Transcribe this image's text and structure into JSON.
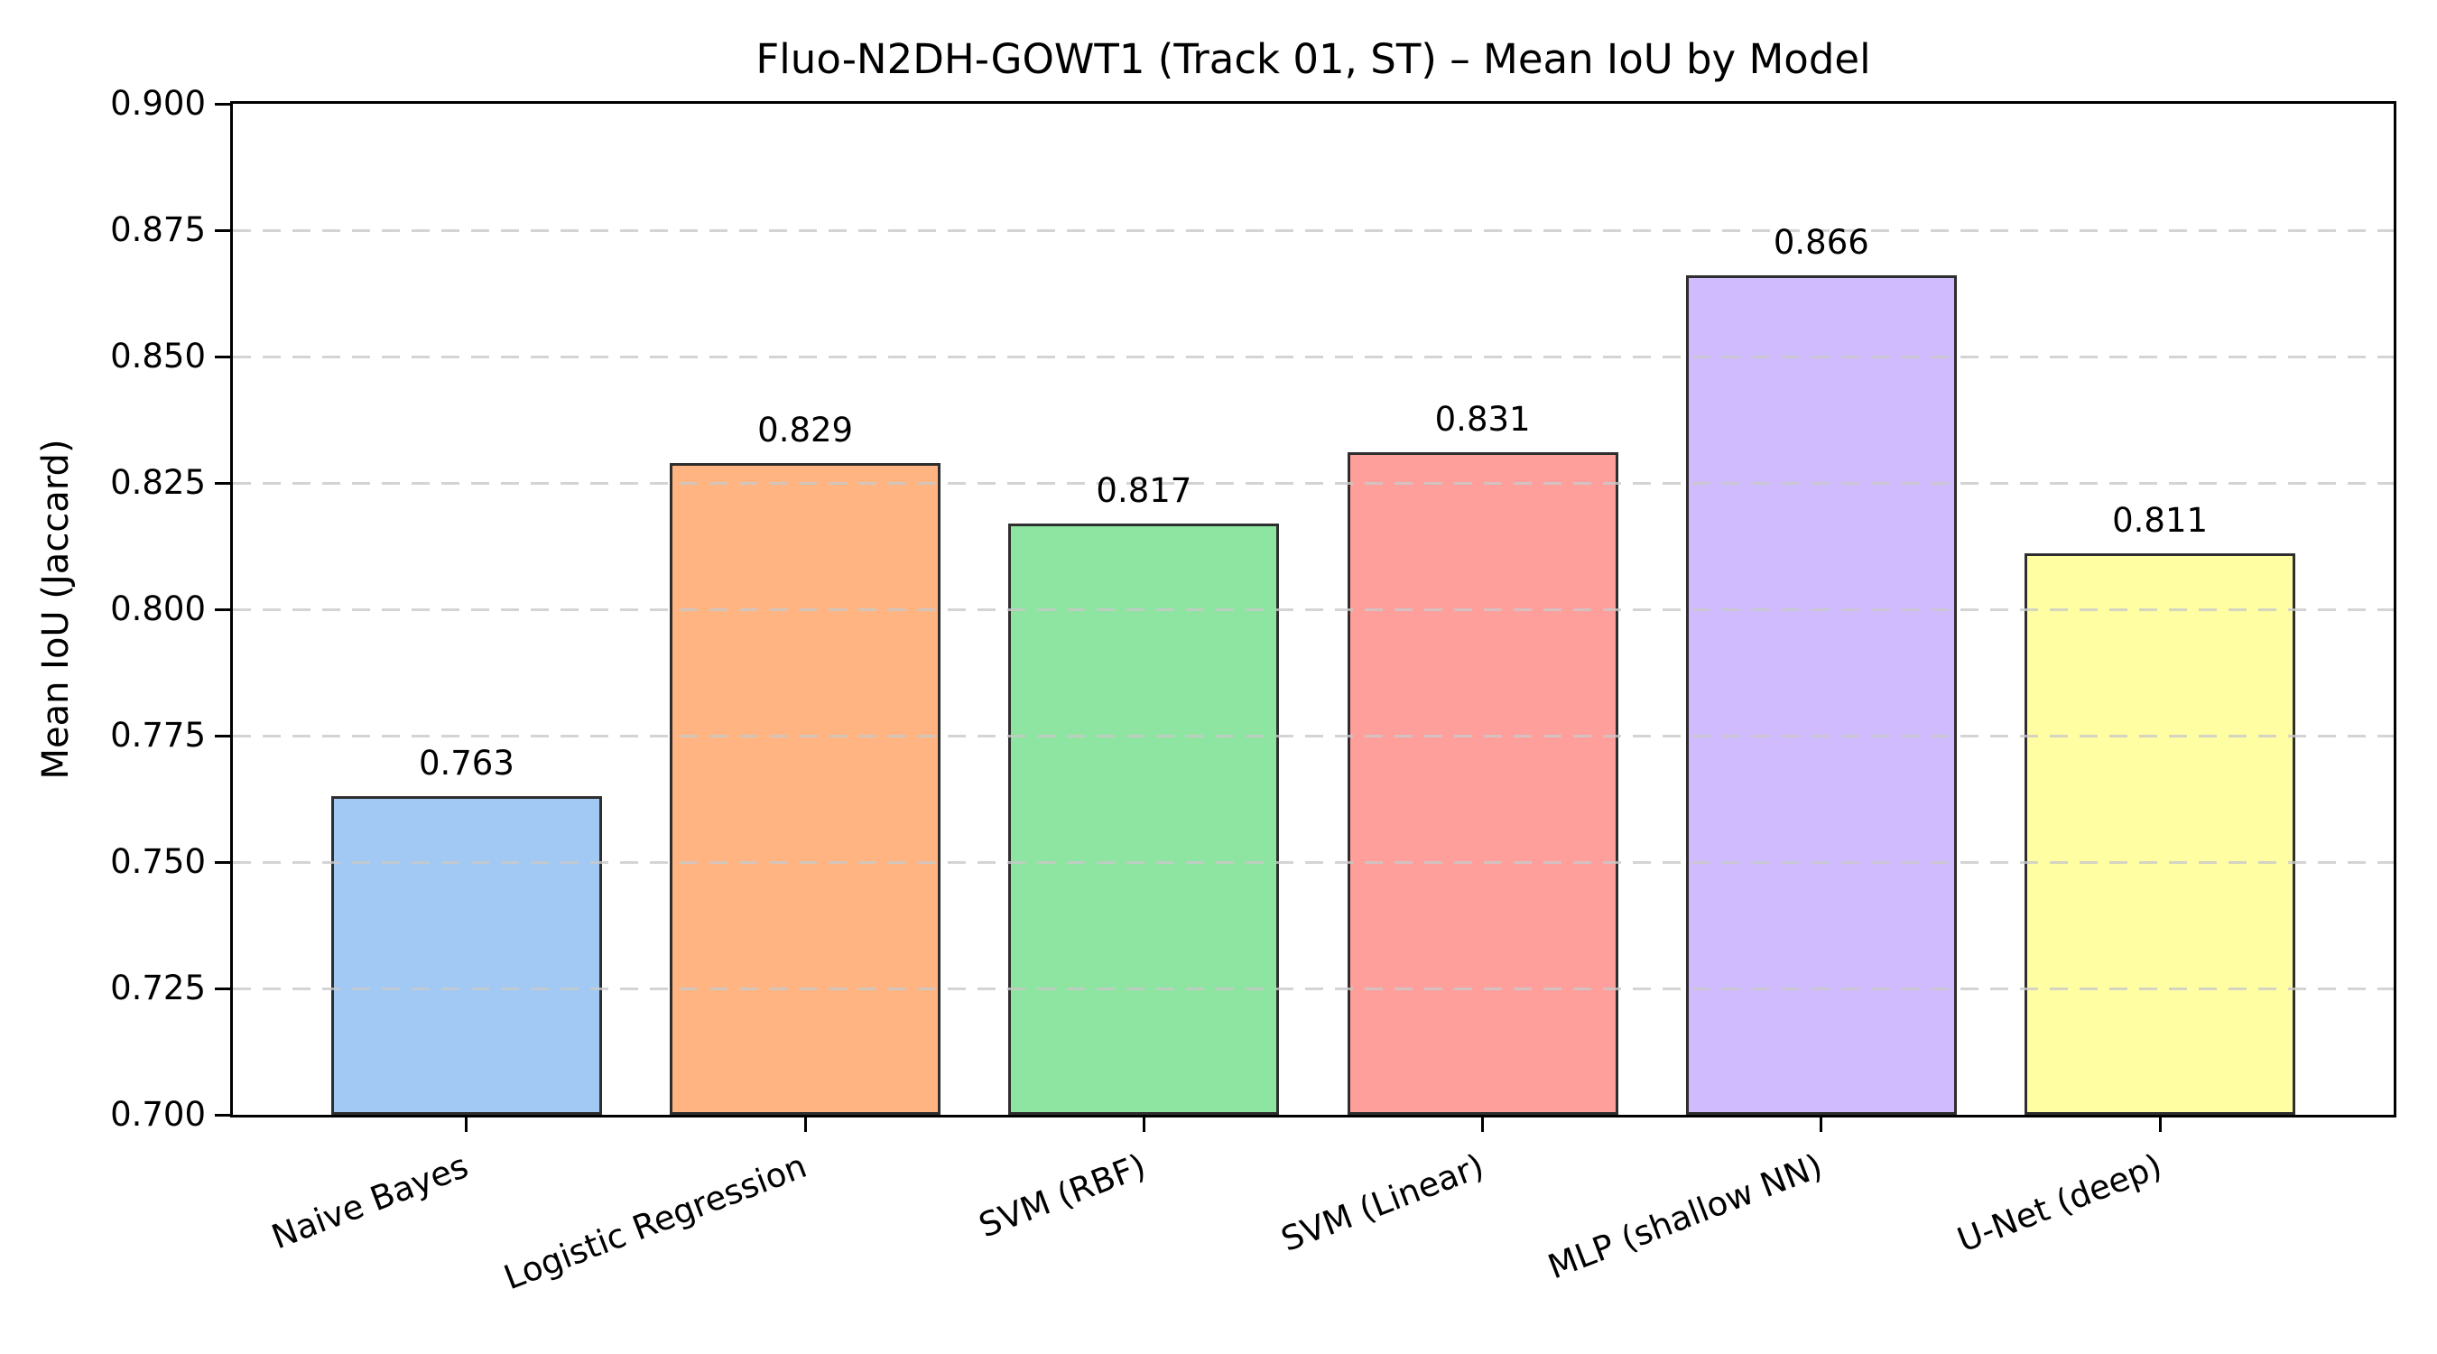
{
  "chart_data": {
    "type": "bar",
    "title": "Fluo-N2DH-GOWT1 (Track 01, ST) – Mean IoU by Model",
    "ylabel": "Mean IoU (Jaccard)",
    "xlabel": "",
    "categories": [
      "Naive Bayes",
      "Logistic Regression",
      "SVM (RBF)",
      "SVM (Linear)",
      "MLP (shallow NN)",
      "U-Net (deep)"
    ],
    "values": [
      0.763,
      0.829,
      0.817,
      0.831,
      0.866,
      0.811
    ],
    "bar_labels": [
      "0.763",
      "0.829",
      "0.817",
      "0.831",
      "0.866",
      "0.811"
    ],
    "colors": [
      "#a1c9f4",
      "#ffb482",
      "#8de5a1",
      "#ff9f9b",
      "#d0bbff",
      "#fffea3"
    ],
    "bar_edge_color": "#2e2e2e",
    "ylim": [
      0.7,
      0.9
    ],
    "yticks": [
      "0.700",
      "0.725",
      "0.750",
      "0.775",
      "0.800",
      "0.825",
      "0.850",
      "0.875",
      "0.900"
    ],
    "grid": "horizontal dashed, drawn above bars",
    "grid_color": "#c9c9c9",
    "axis_color": "#000000",
    "text_color": "#000000",
    "legend": null
  }
}
